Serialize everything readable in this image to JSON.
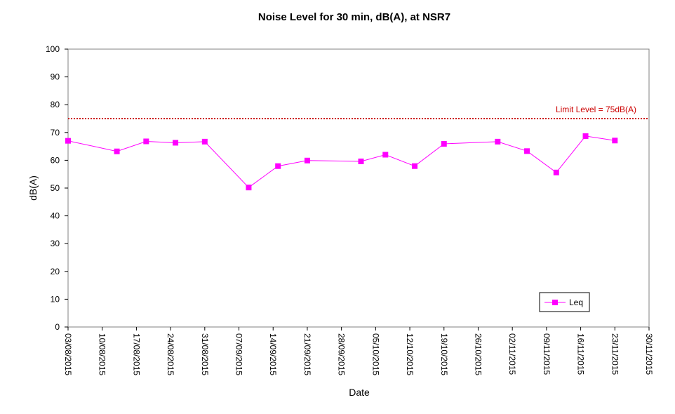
{
  "chart_data": {
    "type": "line",
    "title": "Noise Level for 30 min, dB(A), at NSR7",
    "xlabel": "Date",
    "ylabel": "dB(A)",
    "ylim": [
      0,
      100
    ],
    "yticks": [
      0,
      10,
      20,
      30,
      40,
      50,
      60,
      70,
      80,
      90,
      100
    ],
    "xlim": [
      "03/08/2015",
      "30/11/2015"
    ],
    "xticks": [
      "03/08/2015",
      "10/08/2015",
      "17/08/2015",
      "24/08/2015",
      "31/08/2015",
      "07/09/2015",
      "14/09/2015",
      "21/09/2015",
      "28/09/2015",
      "05/10/2015",
      "12/10/2015",
      "19/10/2015",
      "26/10/2015",
      "02/11/2015",
      "09/11/2015",
      "16/11/2015",
      "23/11/2015",
      "30/11/2015"
    ],
    "grid": false,
    "legend_position": "bottom-right",
    "series": [
      {
        "name": "Leq",
        "color": "#ff00ff",
        "marker": "square",
        "points": [
          {
            "x": "03/08/2015",
            "y": 67.0
          },
          {
            "x": "13/08/2015",
            "y": 63.2
          },
          {
            "x": "19/08/2015",
            "y": 66.8
          },
          {
            "x": "25/08/2015",
            "y": 66.3
          },
          {
            "x": "31/08/2015",
            "y": 66.7
          },
          {
            "x": "09/09/2015",
            "y": 50.2
          },
          {
            "x": "15/09/2015",
            "y": 57.9
          },
          {
            "x": "21/09/2015",
            "y": 59.9
          },
          {
            "x": "02/10/2015",
            "y": 59.6
          },
          {
            "x": "07/10/2015",
            "y": 62.0
          },
          {
            "x": "13/10/2015",
            "y": 57.9
          },
          {
            "x": "19/10/2015",
            "y": 65.9
          },
          {
            "x": "30/10/2015",
            "y": 66.7
          },
          {
            "x": "05/11/2015",
            "y": 63.3
          },
          {
            "x": "11/11/2015",
            "y": 55.6
          },
          {
            "x": "17/11/2015",
            "y": 68.7
          },
          {
            "x": "23/11/2015",
            "y": 67.1
          }
        ]
      }
    ],
    "limit": {
      "value": 75,
      "label": "Limit Level  = 75dB(A)",
      "color": "#cc0000",
      "style": "dotted"
    }
  }
}
